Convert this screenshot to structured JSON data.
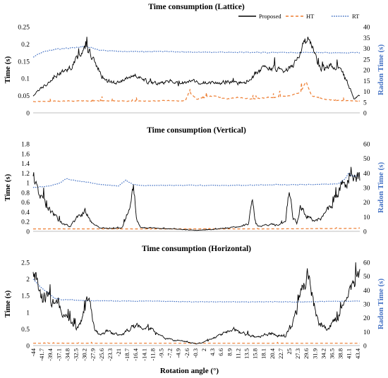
{
  "figure": {
    "x_axis_label": "Rotation angle (°)",
    "x_tick_labels": [
      "-44",
      "-41.7",
      "-39.4",
      "-37.1",
      "-34.8",
      "-32.5",
      "-30.2",
      "-27.9",
      "-25.6",
      "-23.3",
      "-21",
      "-18.7",
      "-16.4",
      "-14.1",
      "-11.8",
      "-9.5",
      "-7.2",
      "-4.9",
      "-2.6",
      "-0.3",
      "2",
      "4.3",
      "6.6",
      "8.9",
      "11.2",
      "13.5",
      "15.8",
      "18.1",
      "20.4",
      "22.7",
      "25",
      "27.3",
      "29.6",
      "31.9",
      "34.2",
      "36.5",
      "38.8",
      "41.1",
      "43.4"
    ],
    "legend": [
      {
        "name": "Proposed",
        "color": "#000000",
        "dash": "solid"
      },
      {
        "name": "HT",
        "color": "#ed7d31",
        "dash": "dashed"
      },
      {
        "name": "RT",
        "color": "#4472c4",
        "dash": "dotted"
      }
    ]
  },
  "chart_data": [
    {
      "type": "line",
      "title": "Time consumption (Lattice)",
      "ylabel": "Time (s)",
      "ylabel_right": "Radon Time (s)",
      "ylim": [
        0,
        0.25
      ],
      "yticks": [
        "0",
        "0.05",
        "0.1",
        "0.15",
        "0.2",
        "0.25"
      ],
      "ylim_right": [
        0,
        40
      ],
      "yticks_right": [
        "0",
        "5",
        "10",
        "15",
        "20",
        "25",
        "30",
        "35",
        "40"
      ],
      "x_range": [
        -44,
        44
      ],
      "series": [
        {
          "name": "Proposed",
          "axis": "left",
          "color": "#000000",
          "x": [
            -44,
            -42,
            -40,
            -38,
            -36,
            -34,
            -32,
            -30.5,
            -29,
            -27,
            -25,
            -23,
            -21,
            -19,
            -17,
            -15,
            -13,
            -11,
            -9,
            -7,
            -5,
            -3,
            -1,
            1,
            3,
            5,
            7,
            9,
            11,
            13,
            15,
            17,
            19,
            21,
            23,
            25,
            27,
            28.5,
            30,
            31.5,
            33,
            35,
            37,
            39,
            41,
            42.5,
            44
          ],
          "values": [
            0.05,
            0.07,
            0.09,
            0.11,
            0.12,
            0.13,
            0.16,
            0.19,
            0.18,
            0.14,
            0.1,
            0.09,
            0.085,
            0.1,
            0.11,
            0.1,
            0.09,
            0.085,
            0.085,
            0.095,
            0.09,
            0.085,
            0.09,
            0.09,
            0.085,
            0.085,
            0.09,
            0.09,
            0.085,
            0.09,
            0.1,
            0.12,
            0.13,
            0.13,
            0.12,
            0.13,
            0.15,
            0.2,
            0.21,
            0.18,
            0.13,
            0.13,
            0.14,
            0.13,
            0.08,
            0.04,
            0.05
          ]
        },
        {
          "name": "HT",
          "axis": "left",
          "color": "#ed7d31",
          "x": [
            -44,
            -30,
            -20,
            -10,
            -3,
            -2,
            0,
            2,
            5,
            8,
            11,
            15,
            20,
            25,
            28,
            29.5,
            31,
            34,
            38,
            44
          ],
          "values": [
            0.033,
            0.035,
            0.034,
            0.035,
            0.035,
            0.06,
            0.04,
            0.045,
            0.05,
            0.04,
            0.045,
            0.04,
            0.045,
            0.05,
            0.06,
            0.09,
            0.05,
            0.04,
            0.036,
            0.034
          ]
        },
        {
          "name": "RT",
          "axis": "right",
          "color": "#4472c4",
          "x": [
            -44,
            -41,
            -38,
            -35,
            -32,
            -30,
            -28,
            -26,
            -24,
            -20,
            -10,
            0,
            10,
            20,
            30,
            40,
            44
          ],
          "values": [
            26,
            28.5,
            29.5,
            30,
            30.5,
            31,
            30,
            29,
            29,
            28.5,
            28.5,
            28.2,
            28.2,
            28,
            28,
            28,
            28
          ]
        }
      ]
    },
    {
      "type": "line",
      "title": "Time consumption (Vertical)",
      "ylabel": "Time (s)",
      "ylabel_right": "Radon Time (s)",
      "ylim": [
        0,
        1.8
      ],
      "yticks": [
        "0",
        "0.2",
        "0.4",
        "0.6",
        "0.8",
        "1",
        "1.2",
        "1.4",
        "1.6",
        "1.8"
      ],
      "ylim_right": [
        0,
        60
      ],
      "yticks_right": [
        "0",
        "10",
        "20",
        "30",
        "40",
        "50",
        "60"
      ],
      "x_range": [
        -44,
        44
      ],
      "series": [
        {
          "name": "Proposed",
          "axis": "left",
          "color": "#000000",
          "x": [
            -44,
            -43,
            -42,
            -40,
            -38,
            -36,
            -34,
            -32,
            -30,
            -28,
            -26,
            -24,
            -20,
            -18,
            -17,
            -16,
            -15,
            -14,
            -12,
            -10,
            -6,
            -2,
            0,
            2,
            6,
            10,
            12,
            14,
            15,
            16,
            17,
            18,
            20,
            22,
            24,
            25,
            26,
            27,
            28,
            30,
            32,
            34,
            36,
            38,
            40,
            42,
            44
          ],
          "values": [
            1.2,
            0.9,
            0.7,
            0.5,
            0.3,
            0.15,
            0.1,
            0.3,
            0.4,
            0.15,
            0.08,
            0.06,
            0.07,
            0.5,
            0.9,
            0.2,
            0.08,
            0.08,
            0.07,
            0.06,
            0.05,
            0.03,
            0.02,
            0.03,
            0.05,
            0.08,
            0.1,
            0.15,
            0.6,
            0.15,
            0.1,
            0.12,
            0.15,
            0.12,
            0.2,
            0.9,
            0.3,
            0.15,
            0.5,
            0.3,
            0.2,
            0.3,
            0.5,
            0.8,
            1.0,
            1.3,
            1.1
          ]
        },
        {
          "name": "HT",
          "axis": "left",
          "color": "#ed7d31",
          "x": [
            -44,
            -20,
            0,
            20,
            44
          ],
          "values": [
            0.05,
            0.05,
            0.05,
            0.05,
            0.06
          ]
        },
        {
          "name": "RT",
          "axis": "right",
          "color": "#4472c4",
          "x": [
            -44,
            -40,
            -37,
            -35,
            -33,
            -30,
            -28,
            -25,
            -21,
            -19,
            -17,
            -15,
            -10,
            0,
            10,
            20,
            30,
            38,
            40,
            41,
            42,
            44
          ],
          "values": [
            30,
            31,
            33,
            36,
            35,
            34,
            33,
            32,
            31,
            35,
            32,
            31.5,
            31.5,
            31.5,
            31.5,
            32,
            32,
            32.5,
            36,
            40,
            38,
            38
          ]
        }
      ]
    },
    {
      "type": "line",
      "title": "Time consumption (Horizontal)",
      "ylabel": "Time (s)",
      "ylabel_right": "Radon Time (s)",
      "ylim": [
        0,
        2.5
      ],
      "yticks": [
        "0",
        "0.5",
        "1",
        "1.5",
        "2",
        "2.5"
      ],
      "ylim_right": [
        0,
        60
      ],
      "yticks_right": [
        "0",
        "10",
        "20",
        "30",
        "40",
        "50",
        "60"
      ],
      "x_range": [
        -44,
        44
      ],
      "series": [
        {
          "name": "Proposed",
          "axis": "left",
          "color": "#000000",
          "x": [
            -44,
            -43,
            -42,
            -40,
            -38,
            -36,
            -34,
            -32,
            -30.5,
            -29,
            -27.5,
            -26,
            -24,
            -22,
            -20,
            -18,
            -16,
            -14,
            -12,
            -10,
            -8,
            -6,
            -4,
            -2,
            0,
            2,
            4,
            6,
            8,
            10,
            12,
            14,
            16,
            18,
            20,
            22,
            24,
            25.5,
            27,
            28.5,
            30,
            31.5,
            33,
            35,
            37,
            39,
            41,
            43,
            44
          ],
          "values": [
            2.3,
            1.9,
            1.6,
            1.4,
            1.2,
            1.0,
            0.7,
            0.5,
            0.9,
            1.6,
            0.5,
            0.3,
            0.45,
            0.35,
            0.3,
            0.5,
            0.6,
            0.55,
            0.5,
            0.3,
            0.2,
            0.15,
            0.15,
            0.1,
            0.05,
            0.1,
            0.2,
            0.3,
            0.4,
            0.45,
            0.4,
            0.3,
            0.25,
            0.3,
            0.35,
            0.3,
            0.3,
            0.6,
            1.0,
            1.7,
            2.1,
            1.3,
            0.6,
            0.5,
            0.7,
            1.0,
            1.4,
            2.0,
            2.3
          ]
        },
        {
          "name": "HT",
          "axis": "left",
          "color": "#ed7d31",
          "x": [
            -44,
            0,
            44
          ],
          "values": [
            0.07,
            0.07,
            0.07
          ]
        },
        {
          "name": "RT",
          "axis": "right",
          "color": "#4472c4",
          "x": [
            -44,
            -42,
            -40,
            -38,
            -36,
            -34,
            -30,
            -20,
            -10,
            0,
            10,
            20,
            30,
            40,
            44
          ],
          "values": [
            48,
            42,
            38,
            34,
            33,
            33,
            32.5,
            32,
            32,
            31.5,
            31.5,
            31.5,
            31.5,
            32,
            32
          ]
        }
      ]
    }
  ]
}
